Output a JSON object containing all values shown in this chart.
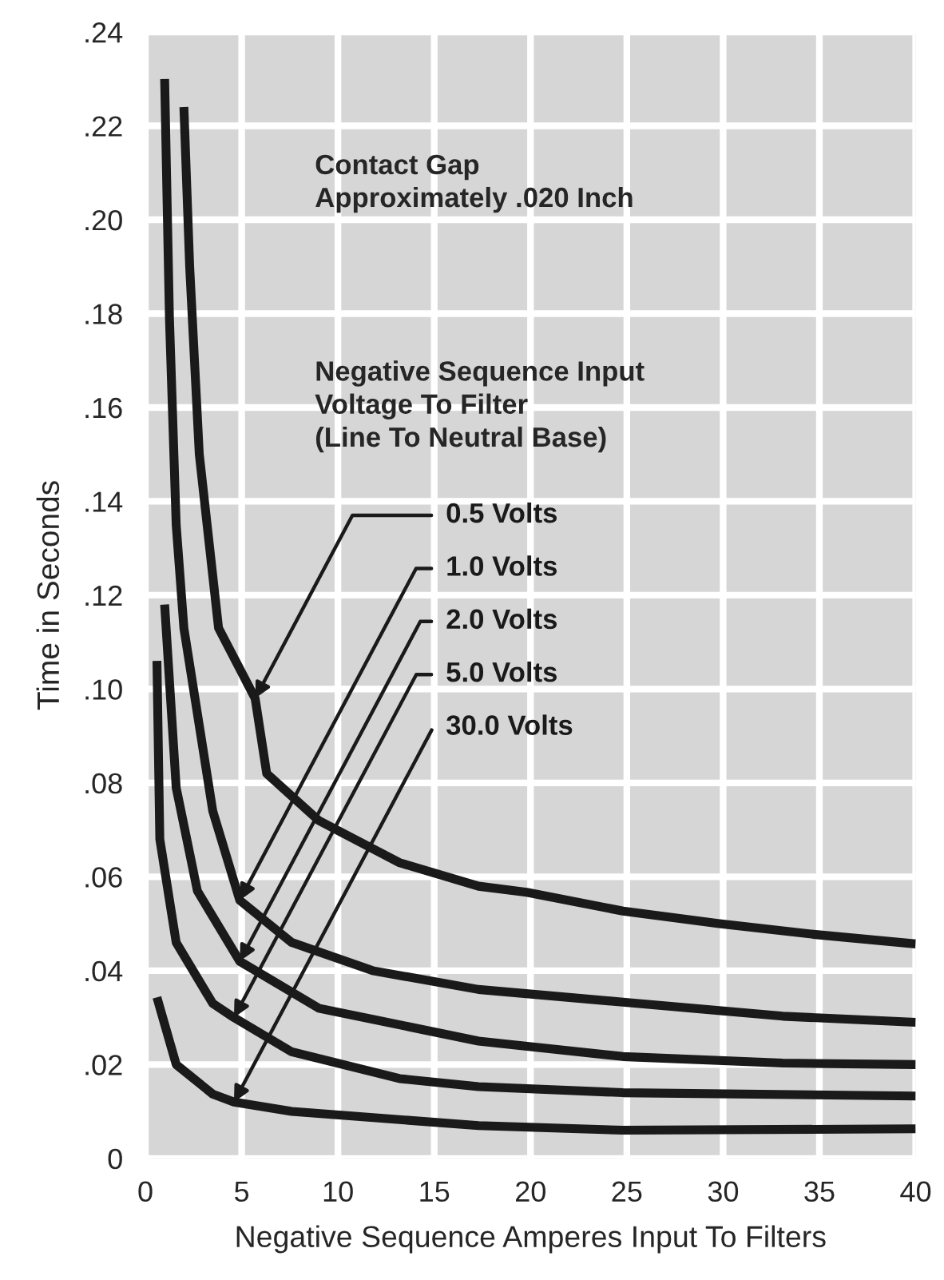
{
  "chart_data": {
    "type": "line",
    "xlabel": "Negative Sequence Amperes Input To Filters",
    "ylabel": "Time in Seconds",
    "xlim": [
      0,
      40
    ],
    "ylim": [
      0,
      0.24
    ],
    "xticks": [
      0,
      5,
      10,
      15,
      20,
      25,
      30,
      35,
      40
    ],
    "yticks": [
      0,
      {
        "value": 0.02,
        "label": ".02"
      },
      {
        "value": 0.04,
        "label": ".04"
      },
      {
        "value": 0.06,
        "label": ".06"
      },
      {
        "value": 0.08,
        "label": ".08"
      },
      {
        "value": 0.1,
        "label": ".10"
      },
      {
        "value": 0.12,
        "label": ".12"
      },
      {
        "value": 0.14,
        "label": ".14"
      },
      {
        "value": 0.16,
        "label": ".16"
      },
      {
        "value": 0.18,
        "label": ".18"
      },
      {
        "value": 0.2,
        "label": ".20"
      },
      {
        "value": 0.22,
        "label": ".22"
      },
      {
        "value": 0.24,
        "label": ".24"
      }
    ],
    "grid": true,
    "legend": false,
    "line_style": "solid",
    "marker": "none",
    "series": [
      {
        "color": "#1a1a1a",
        "x": [
          2.0,
          2.3,
          2.8,
          3.8,
          5.7,
          6.3,
          9.0,
          13.2,
          17.3,
          19.8,
          24.8,
          29.8,
          34.8,
          40
        ],
        "values": [
          0.224,
          0.19,
          0.15,
          0.113,
          0.098,
          0.082,
          0.072,
          0.063,
          0.058,
          0.0567,
          0.0527,
          0.05,
          0.0477,
          0.0457
        ]
      },
      {
        "color": "#1a1a1a",
        "x": [
          1.0,
          1.25,
          1.6,
          2.0,
          3.5,
          4.9,
          7.6,
          11.8,
          17.3,
          24.8,
          33.1,
          40
        ],
        "values": [
          0.23,
          0.179,
          0.135,
          0.113,
          0.074,
          0.055,
          0.046,
          0.04,
          0.036,
          0.0333,
          0.0303,
          0.029
        ]
      },
      {
        "color": "#1a1a1a",
        "x": [
          1.0,
          1.6,
          2.7,
          4.9,
          9.0,
          17.3,
          24.8,
          33.1,
          40
        ],
        "values": [
          0.118,
          0.079,
          0.057,
          0.042,
          0.032,
          0.025,
          0.0217,
          0.0203,
          0.02
        ]
      },
      {
        "color": "#1a1a1a",
        "x": [
          0.6,
          0.75,
          1.6,
          3.5,
          4.6,
          7.6,
          13.2,
          17.3,
          24.8,
          40
        ],
        "values": [
          0.106,
          0.068,
          0.046,
          0.033,
          0.03,
          0.0227,
          0.017,
          0.0153,
          0.014,
          0.0133
        ]
      },
      {
        "color": "#1a1a1a",
        "x": [
          0.6,
          1.6,
          3.5,
          4.6,
          7.6,
          17.3,
          24.8,
          40
        ],
        "values": [
          0.0343,
          0.02,
          0.0137,
          0.012,
          0.01,
          0.007,
          0.006,
          0.0063
        ]
      }
    ],
    "annotations": [
      "Contact Gap\nApproximately .020 Inch",
      "Negative Sequence Input\nVoltage To Filter\n(Line To Neutral Base)",
      {
        "text": "0.5 Volts",
        "x": 5.7,
        "y": 0.098
      },
      {
        "text": "1.0 Volts",
        "x": 4.9,
        "y": 0.055
      },
      {
        "text": "2.0 Volts",
        "x": 4.9,
        "y": 0.042
      },
      {
        "text": "5.0 Volts",
        "x": 4.6,
        "y": 0.03
      },
      {
        "text": "30.0 Volts",
        "x": 4.6,
        "y": 0.012
      }
    ]
  }
}
